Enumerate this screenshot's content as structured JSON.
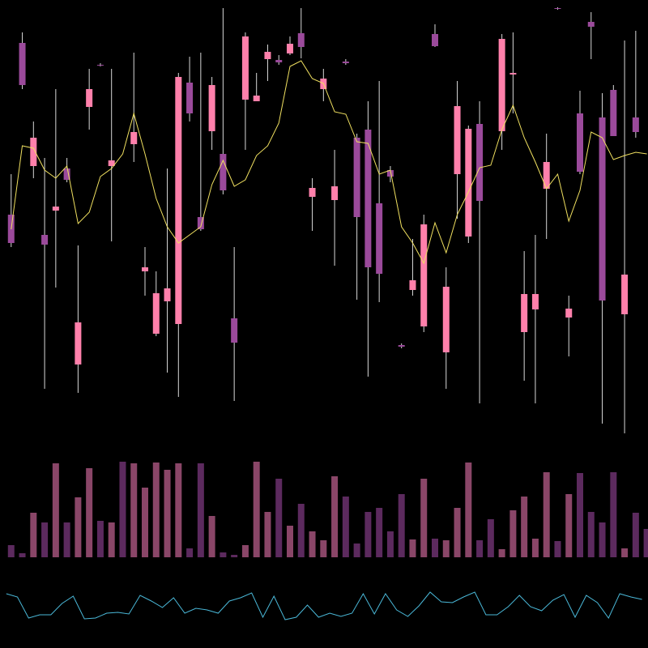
{
  "chart_data": [
    {
      "type": "candlestick",
      "x": [
        0,
        1,
        2,
        3,
        4,
        5,
        6,
        7,
        8,
        9,
        10,
        11,
        12,
        13,
        14,
        15,
        16,
        17,
        18,
        19,
        20,
        21,
        22,
        23,
        24,
        25,
        26,
        27,
        28,
        29,
        30,
        31,
        32,
        33,
        34,
        35,
        36,
        37,
        38,
        39,
        40,
        41,
        42,
        43,
        44,
        45,
        46,
        47,
        48,
        49,
        50,
        51,
        52,
        53,
        54,
        55,
        56,
        57
      ],
      "open": [
        275,
        487,
        335,
        250,
        280,
        332,
        90,
        408,
        460,
        335,
        null,
        362,
        205,
        128,
        168,
        140,
        438,
        272,
        378,
        350,
        147,
        417,
        415,
        467,
        466,
        474,
        499,
        297,
        430,
        293,
        464,
        370,
        380,
        289,
        330,
        114,
        182,
        137,
        498,
        105,
        325,
        248,
        387,
        null,
        378,
        448,
        130,
        158,
        307,
        530,
        148,
        400,
        513,
        395,
        429,
        152,
        395,
        null
      ],
      "high": [
        325,
        500,
        390,
        345,
        430,
        345,
        237,
        455,
        462,
        455,
        null,
        475,
        235,
        205,
        332,
        450,
        470,
        475,
        445,
        530,
        235,
        500,
        450,
        485,
        472,
        495,
        530,
        320,
        455,
        355,
        467,
        375,
        415,
        440,
        335,
        116,
        245,
        275,
        510,
        210,
        440,
        385,
        415,
        null,
        498,
        500,
        230,
        250,
        375,
        531,
        175,
        428,
        525,
        425,
        435,
        490,
        502,
        null
      ],
      "low": [
        235,
        430,
        320,
        60,
        185,
        315,
        55,
        380,
        458,
        242,
        null,
        340,
        175,
        125,
        80,
        50,
        390,
        255,
        355,
        300,
        45,
        355,
        415,
        440,
        460,
        472,
        468,
        255,
        415,
        212,
        460,
        170,
        75,
        167,
        315,
        110,
        175,
        130,
        482,
        60,
        270,
        240,
        42,
        null,
        355,
        400,
        70,
        42,
        245,
        528,
        100,
        325,
        467,
        17,
        372,
        5,
        370,
        null
      ],
      "close": [
        240,
        435,
        370,
        238,
        285,
        318,
        142,
        430,
        459,
        342,
        null,
        377,
        210,
        178,
        184,
        445,
        400,
        257,
        435,
        305,
        117,
        495,
        422,
        476,
        463,
        486,
        482,
        308,
        443,
        310,
        462,
        272,
        210,
        202,
        322,
        112,
        194,
        263,
        483,
        186,
        409,
        381,
        292,
        null,
        492,
        450,
        177,
        177,
        340,
        529,
        159,
        328,
        507,
        169,
        372,
        201,
        377,
        null
      ],
      "up_color": "#ff80ab",
      "down_color": "#9b4a9b",
      "wick_color": "#d8d8d8",
      "line": {
        "color": "#f0e060",
        "values": [
          257,
          360,
          357,
          330,
          320,
          335,
          264,
          278,
          322,
          332,
          350,
          400,
          350,
          295,
          260,
          240,
          250,
          260,
          312,
          342,
          310,
          318,
          348,
          360,
          388,
          458,
          465,
          443,
          437,
          402,
          399,
          365,
          363,
          325,
          330,
          260,
          240,
          215,
          265,
          228,
          275,
          303,
          333,
          336,
          380,
          410,
          370,
          340,
          307,
          325,
          267,
          305,
          377,
          370,
          343,
          348,
          352,
          350
        ]
      },
      "xlim": [
        -1,
        57.1
      ],
      "ylim": [
        0,
        540
      ]
    },
    {
      "type": "volume",
      "values": [
        15,
        5,
        55,
        43,
        116,
        43,
        74,
        110,
        45,
        43,
        118,
        116,
        86,
        117,
        108,
        116,
        11,
        116,
        51,
        6,
        3,
        15,
        118,
        56,
        97,
        39,
        66,
        32,
        21,
        100,
        75,
        17,
        56,
        61,
        32,
        78,
        22,
        97,
        23,
        21,
        61,
        117,
        21,
        47,
        10,
        58,
        75,
        23,
        105,
        20,
        78,
        104,
        56,
        43,
        105,
        11,
        55,
        35
      ],
      "up_color": "#8a4668",
      "down_color": "#5c2a5e",
      "xlim": [
        -1,
        57.1
      ],
      "ylim": [
        0,
        120
      ]
    },
    {
      "type": "line",
      "values": [
        47,
        43,
        17,
        21,
        21,
        35,
        44,
        16,
        17,
        23,
        24,
        22,
        45,
        38,
        30,
        42,
        23,
        29,
        27,
        23,
        38,
        42,
        48,
        18,
        44,
        15,
        18,
        33,
        18,
        23,
        19,
        23,
        47,
        22,
        47,
        27,
        19,
        32,
        49,
        37,
        36,
        43,
        49,
        21,
        21,
        31,
        45,
        31,
        26,
        39,
        46,
        18,
        45,
        36,
        17,
        47,
        43,
        40
      ],
      "color": "#4ab8d8",
      "xlim": [
        -1,
        57.1
      ],
      "ylim": [
        0,
        60
      ]
    }
  ]
}
